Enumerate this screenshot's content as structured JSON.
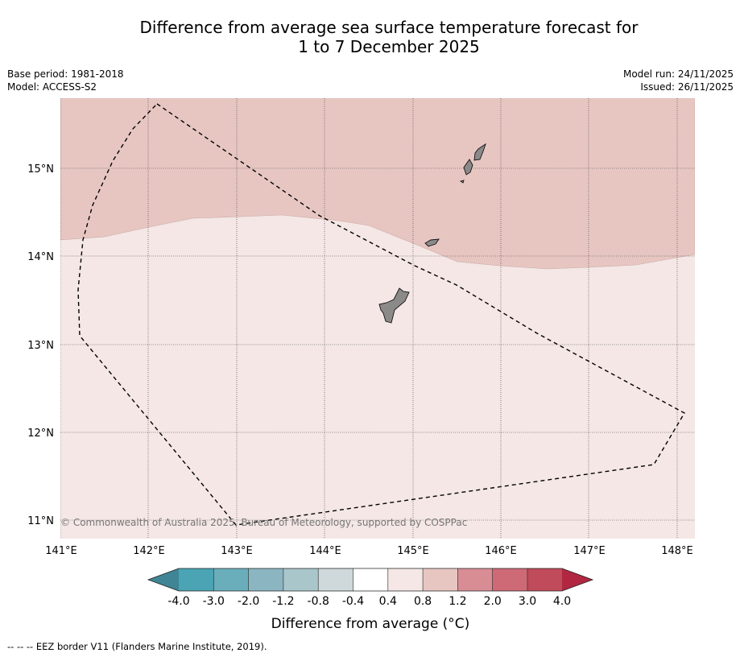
{
  "title": {
    "line1": "Difference from average sea surface temperature forecast for",
    "line2": "1 to 7 December 2025"
  },
  "meta": {
    "base_period": "Base period: 1981-2018",
    "model": "Model: ACCESS-S2",
    "model_run": "Model run: 24/11/2025",
    "issued": "Issued: 26/11/2025"
  },
  "map": {
    "lon_labels": [
      "141°E",
      "142°E",
      "143°E",
      "144°E",
      "145°E",
      "146°E",
      "147°E",
      "148°E"
    ],
    "lat_labels": [
      "15°N",
      "14°N",
      "13°N",
      "12°N",
      "11°N"
    ],
    "copyright": "© Commonwealth of Australia 2025, Bureau of Meteorology, supported by COSPPac",
    "colors": {
      "anomaly_0_8_to_1_2": "#e7c6c2",
      "anomaly_0_4_to_0_8": "#f4e7e5",
      "land": "#8c8a89",
      "eez": "#000000"
    }
  },
  "colorbar": {
    "tick_labels": [
      "-4.0",
      "-3.0",
      "-2.0",
      "-1.2",
      "-0.8",
      "-0.4",
      "0.4",
      "0.8",
      "1.2",
      "2.0",
      "3.0",
      "4.0"
    ],
    "bin_colors": [
      "#4aa4b4",
      "#6aaebb",
      "#8bb6c1",
      "#a9c6cb",
      "#cfd9db",
      "#ffffff",
      "#f4e7e5",
      "#e7c6c2",
      "#d88d95",
      "#cd6a75",
      "#c04b5a"
    ],
    "under_color": "#3f8595",
    "over_color": "#b12741",
    "label": "Difference from average (°C)"
  },
  "legend": {
    "eez_marker": "-- -- --",
    "eez_text": "EEZ border V11 (Flanders Marine Institute, 2019)."
  }
}
